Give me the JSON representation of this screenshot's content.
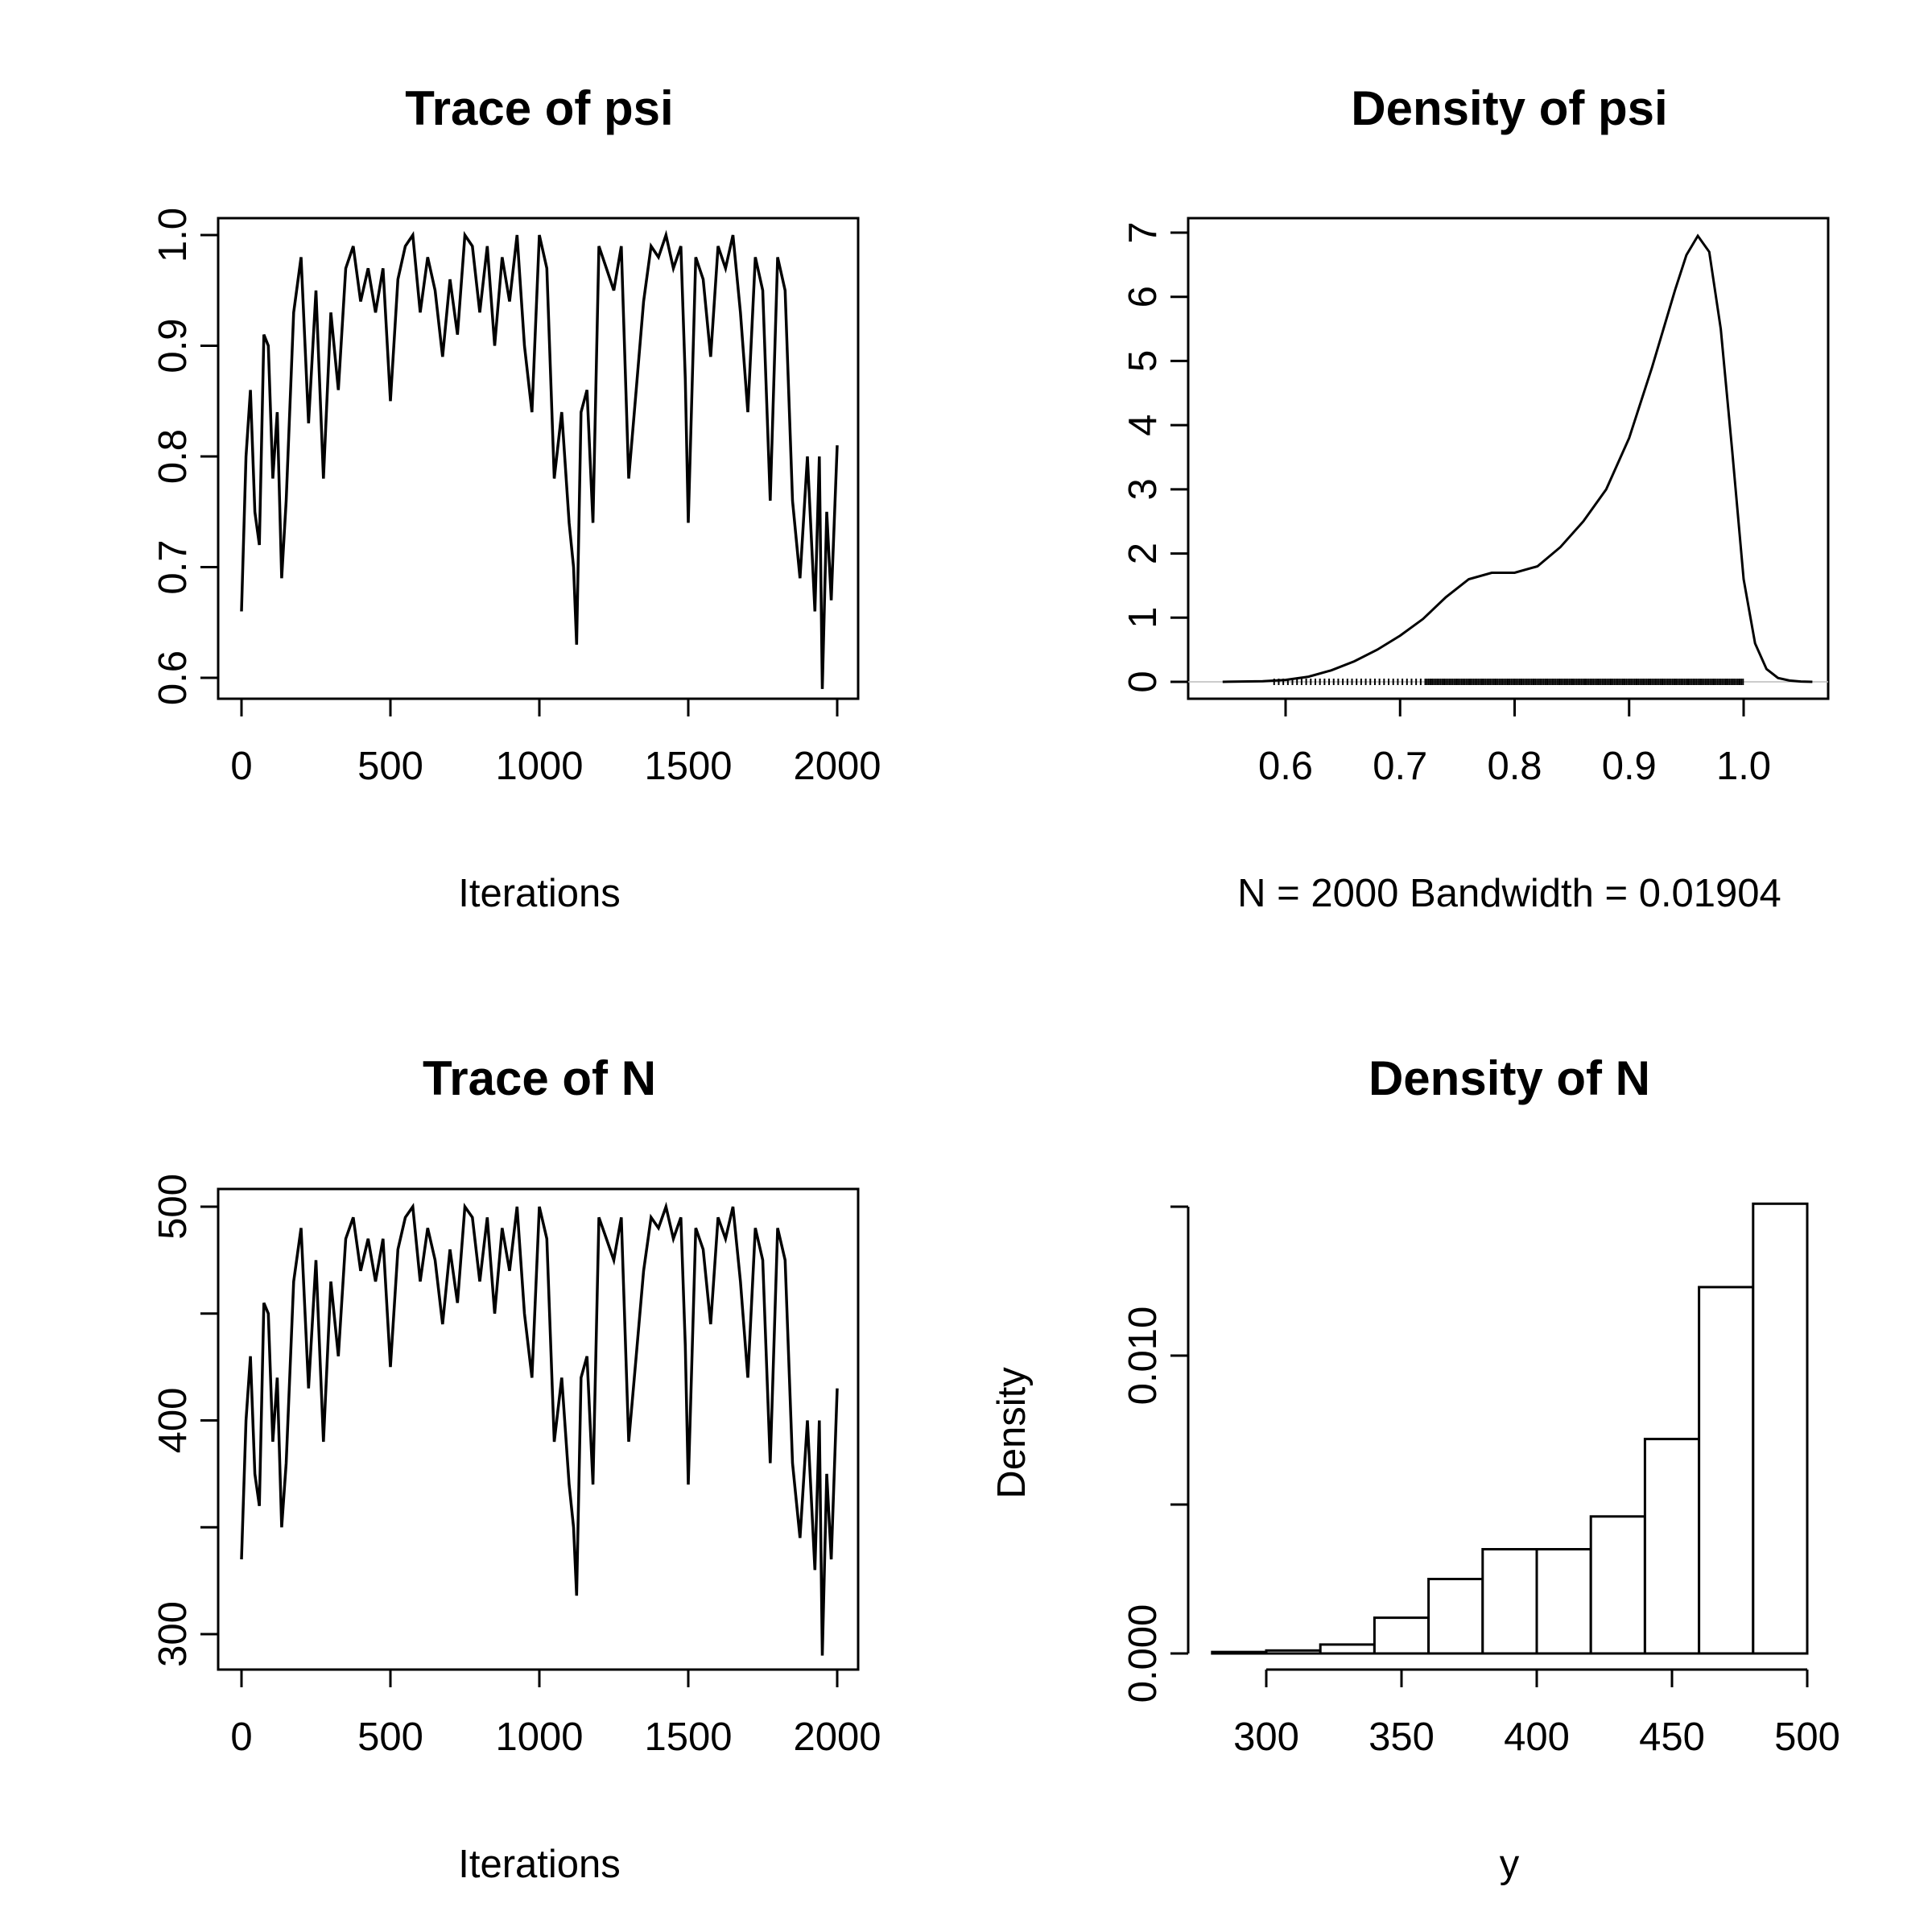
{
  "chart_data": [
    {
      "type": "line",
      "title": "Trace of psi",
      "xlabel": "Iterations",
      "ylabel": "",
      "xlim": [
        0,
        2000
      ],
      "ylim": [
        0.6,
        1.0
      ],
      "xticks": [
        "0",
        "500",
        "1000",
        "1500",
        "2000"
      ],
      "yticks": [
        "0.6",
        "0.7",
        "0.8",
        "0.9",
        "1.0"
      ],
      "x": [
        0,
        15,
        30,
        45,
        60,
        75,
        90,
        105,
        120,
        135,
        150,
        175,
        200,
        225,
        250,
        275,
        300,
        325,
        350,
        375,
        400,
        425,
        450,
        475,
        500,
        525,
        550,
        575,
        600,
        625,
        650,
        675,
        700,
        725,
        750,
        775,
        800,
        825,
        850,
        875,
        900,
        925,
        950,
        975,
        1000,
        1025,
        1050,
        1075,
        1100,
        1115,
        1125,
        1140,
        1160,
        1180,
        1200,
        1225,
        1250,
        1275,
        1300,
        1325,
        1350,
        1375,
        1400,
        1425,
        1450,
        1475,
        1490,
        1500,
        1525,
        1550,
        1575,
        1600,
        1625,
        1650,
        1675,
        1700,
        1725,
        1750,
        1775,
        1800,
        1825,
        1850,
        1875,
        1900,
        1925,
        1940,
        1950,
        1965,
        1980,
        2000
      ],
      "series": [
        {
          "values": [
            0.66,
            0.8,
            0.86,
            0.75,
            0.72,
            0.91,
            0.9,
            0.78,
            0.84,
            0.69,
            0.76,
            0.93,
            0.98,
            0.83,
            0.95,
            0.78,
            0.93,
            0.86,
            0.97,
            0.99,
            0.94,
            0.97,
            0.93,
            0.97,
            0.85,
            0.96,
            0.99,
            1.0,
            0.93,
            0.98,
            0.95,
            0.89,
            0.96,
            0.91,
            1.0,
            0.99,
            0.93,
            0.99,
            0.9,
            0.98,
            0.94,
            1.0,
            0.9,
            0.84,
            1.0,
            0.97,
            0.78,
            0.84,
            0.74,
            0.7,
            0.63,
            0.84,
            0.86,
            0.74,
            0.99,
            0.97,
            0.95,
            0.99,
            0.78,
            0.86,
            0.94,
            0.99,
            0.98,
            1.0,
            0.97,
            0.99,
            0.87,
            0.74,
            0.98,
            0.96,
            0.89,
            0.99,
            0.97,
            1.0,
            0.93,
            0.84,
            0.98,
            0.95,
            0.76,
            0.98,
            0.95,
            0.76,
            0.69,
            0.8,
            0.66,
            0.8,
            0.59,
            0.75,
            0.67,
            0.81
          ]
        }
      ]
    },
    {
      "type": "area",
      "title": "Density of psi",
      "xlabel": "N = 2000   Bandwidth = 0.01904",
      "ylabel": "",
      "xlim": [
        0.53,
        1.08
      ],
      "ylim": [
        0,
        7
      ],
      "xticks": [
        "0.6",
        "0.7",
        "0.8",
        "0.9",
        "1.0"
      ],
      "yticks": [
        "0",
        "1",
        "2",
        "3",
        "4",
        "5",
        "6",
        "7"
      ],
      "x": [
        0.545,
        0.58,
        0.6,
        0.62,
        0.64,
        0.66,
        0.68,
        0.7,
        0.72,
        0.74,
        0.76,
        0.78,
        0.8,
        0.82,
        0.84,
        0.86,
        0.88,
        0.9,
        0.92,
        0.94,
        0.95,
        0.96,
        0.97,
        0.98,
        0.99,
        1.0,
        1.01,
        1.02,
        1.03,
        1.04,
        1.05,
        1.06
      ],
      "series": [
        {
          "values": [
            0.0,
            0.01,
            0.03,
            0.08,
            0.18,
            0.32,
            0.5,
            0.72,
            0.98,
            1.32,
            1.6,
            1.7,
            1.7,
            1.8,
            2.1,
            2.5,
            3.0,
            3.8,
            4.9,
            6.1,
            6.65,
            6.95,
            6.7,
            5.5,
            3.6,
            1.6,
            0.6,
            0.2,
            0.06,
            0.02,
            0.005,
            0.0
          ]
        }
      ],
      "rug_range": [
        0.59,
        1.0
      ]
    },
    {
      "type": "line",
      "title": "Trace of N",
      "xlabel": "Iterations",
      "ylabel": "",
      "xlim": [
        0,
        2000
      ],
      "ylim": [
        300,
        500
      ],
      "xticks": [
        "0",
        "500",
        "1000",
        "1500",
        "2000"
      ],
      "yticks": [
        "300",
        "",
        "400",
        "",
        "500"
      ],
      "x": [
        0,
        15,
        30,
        45,
        60,
        75,
        90,
        105,
        120,
        135,
        150,
        175,
        200,
        225,
        250,
        275,
        300,
        325,
        350,
        375,
        400,
        425,
        450,
        475,
        500,
        525,
        550,
        575,
        600,
        625,
        650,
        675,
        700,
        725,
        750,
        775,
        800,
        825,
        850,
        875,
        900,
        925,
        950,
        975,
        1000,
        1025,
        1050,
        1075,
        1100,
        1115,
        1125,
        1140,
        1160,
        1180,
        1200,
        1225,
        1250,
        1275,
        1300,
        1325,
        1350,
        1375,
        1400,
        1425,
        1450,
        1475,
        1490,
        1500,
        1525,
        1550,
        1575,
        1600,
        1625,
        1650,
        1675,
        1700,
        1725,
        1750,
        1775,
        1800,
        1825,
        1850,
        1875,
        1900,
        1925,
        1940,
        1950,
        1965,
        1980,
        2000
      ],
      "series": [
        {
          "values": [
            335,
            400,
            430,
            375,
            360,
            455,
            450,
            390,
            420,
            350,
            380,
            465,
            490,
            415,
            475,
            390,
            465,
            430,
            485,
            495,
            470,
            485,
            465,
            485,
            425,
            480,
            495,
            500,
            465,
            490,
            475,
            445,
            480,
            455,
            500,
            495,
            465,
            495,
            450,
            490,
            470,
            500,
            450,
            420,
            500,
            485,
            390,
            420,
            370,
            350,
            318,
            420,
            430,
            370,
            495,
            485,
            475,
            495,
            390,
            430,
            470,
            495,
            490,
            500,
            485,
            495,
            435,
            370,
            490,
            480,
            445,
            495,
            485,
            500,
            465,
            420,
            490,
            475,
            380,
            490,
            475,
            380,
            345,
            400,
            330,
            400,
            290,
            375,
            335,
            415
          ]
        }
      ]
    },
    {
      "type": "bar",
      "title": "Density of N",
      "xlabel": "y",
      "ylabel": "Density",
      "xlim": [
        280,
        500
      ],
      "ylim": [
        0,
        0.015
      ],
      "xticks": [
        "300",
        "350",
        "400",
        "450",
        "500"
      ],
      "yticks": [
        "0.000",
        "",
        "0.010",
        ""
      ],
      "bins": [
        [
          280,
          300
        ],
        [
          300,
          320
        ],
        [
          320,
          340
        ],
        [
          340,
          360
        ],
        [
          360,
          380
        ],
        [
          380,
          400
        ],
        [
          400,
          420
        ],
        [
          420,
          440
        ],
        [
          440,
          460
        ],
        [
          460,
          480
        ],
        [
          480,
          500
        ]
      ],
      "values": [
        5e-05,
        0.0001,
        0.0003,
        0.0012,
        0.0025,
        0.0035,
        0.0035,
        0.0046,
        0.0072,
        0.0123,
        0.0151
      ]
    }
  ]
}
